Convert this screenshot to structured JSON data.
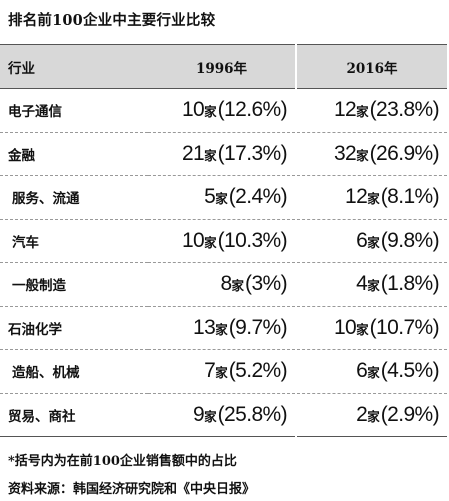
{
  "title": "排名前100企业中主要行业比较",
  "header": {
    "industry": "行业",
    "y1996": "1996年",
    "y2016": "2016年"
  },
  "rows": [
    {
      "industry": "电子通信",
      "indent": false,
      "c1996": "10",
      "p1996": "(12.6%)",
      "c2016": "12",
      "p2016": "(23.8%)"
    },
    {
      "industry": "金融",
      "indent": false,
      "c1996": "21",
      "p1996": "(17.3%)",
      "c2016": "32",
      "p2016": "(26.9%)"
    },
    {
      "industry": "服务、流通",
      "indent": true,
      "c1996": "5",
      "p1996": "(2.4%)",
      "c2016": "12",
      "p2016": "(8.1%)"
    },
    {
      "industry": "汽车",
      "indent": true,
      "c1996": "10",
      "p1996": "(10.3%)",
      "c2016": "6",
      "p2016": "(9.8%)"
    },
    {
      "industry": "一般制造",
      "indent": true,
      "c1996": "8",
      "p1996": "(3%)",
      "c2016": "4",
      "p2016": "(1.8%)"
    },
    {
      "industry": "石油化学",
      "indent": false,
      "c1996": "13",
      "p1996": "(9.7%)",
      "c2016": "10",
      "p2016": "(10.7%)"
    },
    {
      "industry": "造船、机械",
      "indent": true,
      "c1996": "7",
      "p1996": "(5.2%)",
      "c2016": "6",
      "p2016": "(4.5%)"
    },
    {
      "industry": "贸易、商社",
      "indent": false,
      "c1996": "9",
      "p1996": "(25.8%)",
      "c2016": "2",
      "p2016": "(2.9%)"
    }
  ],
  "unit": "家",
  "note": "*括号内为在前100企业销售额中的占比",
  "source": "资料来源：韩国经济研究院和《中央日报》"
}
